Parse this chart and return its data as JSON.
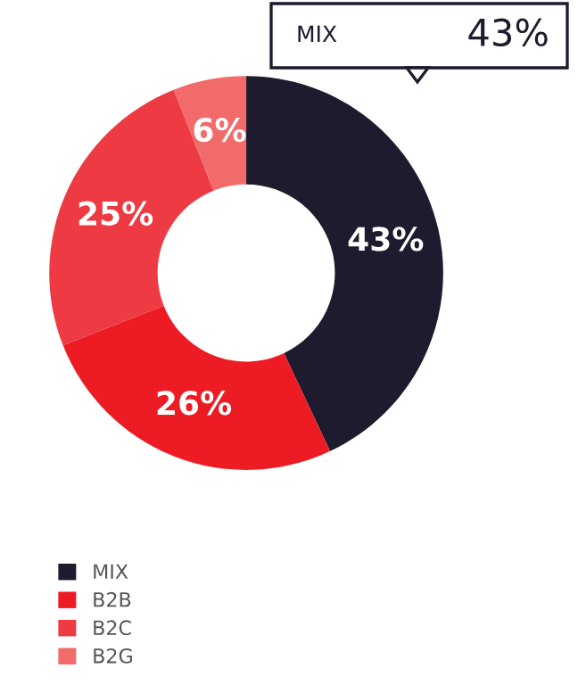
{
  "chart_data": {
    "type": "donut",
    "categories": [
      "MIX",
      "B2B",
      "B2C",
      "B2G"
    ],
    "values": [
      43,
      26,
      25,
      6
    ],
    "colors": [
      "#1e1b2e",
      "#ed1c24",
      "#ee3a43",
      "#f26b6b"
    ],
    "value_labels": [
      "43%",
      "26%",
      "25%",
      "6%"
    ],
    "annotations": [
      "MIX",
      "43%"
    ],
    "legend": "bottom left"
  }
}
